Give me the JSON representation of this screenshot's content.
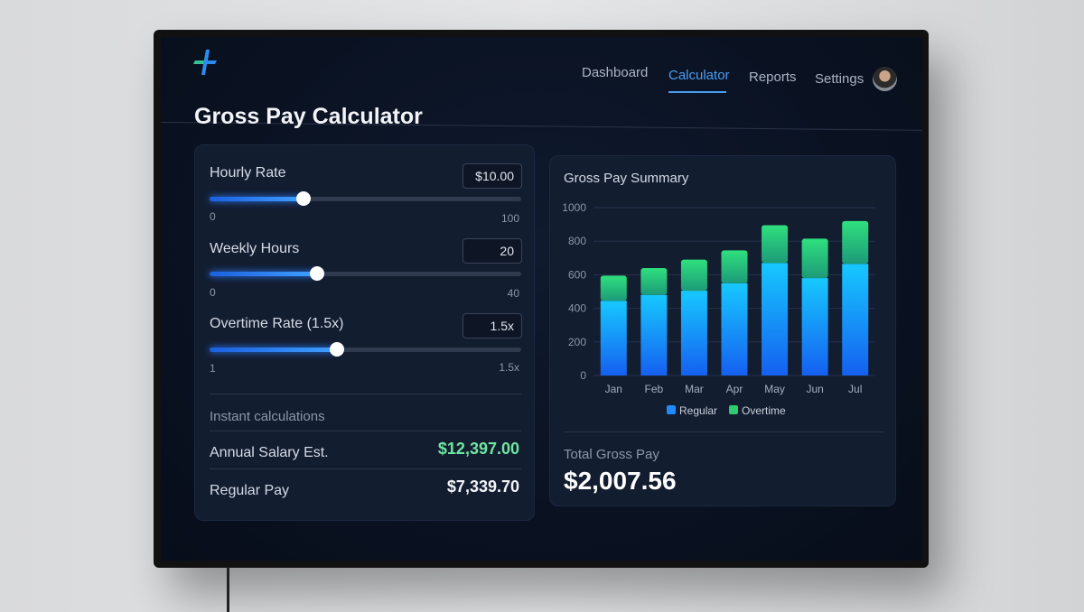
{
  "nav": {
    "items": [
      {
        "label": "Dashboard"
      },
      {
        "label": "Calculator",
        "active": true
      },
      {
        "label": "Reports"
      },
      {
        "label": "Settings"
      }
    ]
  },
  "page_title": "Gross Pay Calculator",
  "inputs": [
    {
      "label": "Hourly Rate",
      "value": "$10.00",
      "min": "0",
      "max": "100",
      "fraction": 0.3
    },
    {
      "label": "Weekly Hours",
      "value": "20",
      "min": "0",
      "max": "40",
      "fraction": 0.345
    },
    {
      "label": "Overtime Rate (1.5x)",
      "value": "1.5x",
      "min": "1",
      "max": "1.5x",
      "fraction": 0.41
    }
  ],
  "calculations": {
    "heading": "Instant calculations",
    "annual_label": "Annual Salary Est.",
    "annual_value": "$12,397.00",
    "regular_label": "Regular Pay",
    "regular_value": "$7,339.70"
  },
  "summary": {
    "title": "Gross Pay Summary",
    "total_label": "Total Gross Pay",
    "total_value": "$2,007.56"
  },
  "colors": {
    "accent": "#4b9cf0",
    "regular": "#1f8bff",
    "overtime": "#2ecc71",
    "positive": "#6ee7a0"
  },
  "chart_data": {
    "type": "bar",
    "stacked": true,
    "categories": [
      "Jan",
      "Feb",
      "Mar",
      "Apr",
      "May",
      "Jun",
      "Jul"
    ],
    "series": [
      {
        "name": "Regular",
        "values": [
          445,
          480,
          505,
          550,
          670,
          580,
          665
        ]
      },
      {
        "name": "Overtime",
        "values": [
          150,
          160,
          185,
          195,
          225,
          235,
          255
        ]
      }
    ],
    "yticks": [
      "0",
      "200",
      "400",
      "600",
      "800",
      "1000"
    ],
    "ylim": [
      0,
      1000
    ],
    "grid": true,
    "legend": "bottom"
  }
}
